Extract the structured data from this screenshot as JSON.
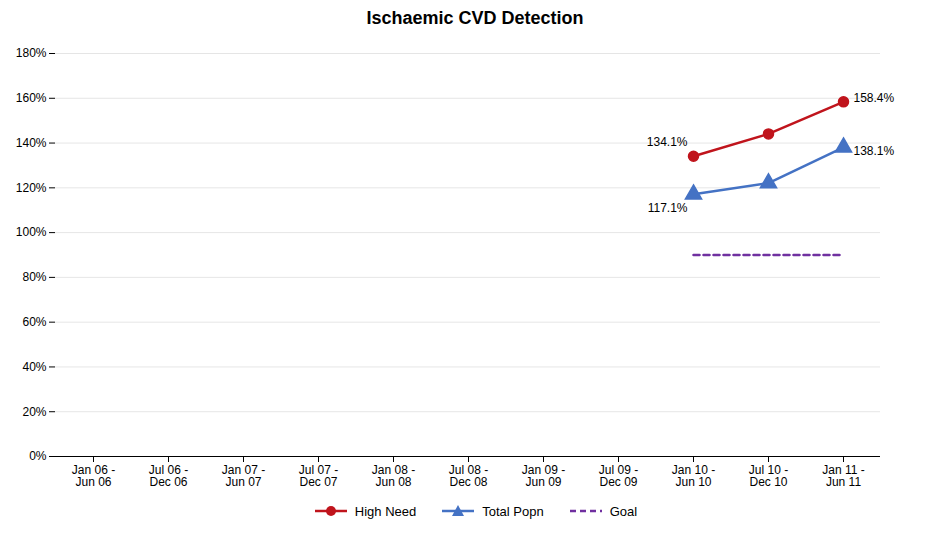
{
  "chart_data": {
    "type": "line",
    "title": "Ischaemic CVD Detection",
    "categories": [
      "Jan 06 -\nJun 06",
      "Jul 06 -\nDec 06",
      "Jan 07 -\nJun 07",
      "Jul 07 -\nDec 07",
      "Jan 08 -\nJun 08",
      "Jul 08 -\nDec 08",
      "Jan 09 -\nJun 09",
      "Jul 09 -\nDec 09",
      "Jan 10 -\nJun 10",
      "Jul 10 -\nDec 10",
      "Jan 11 -\nJun 11"
    ],
    "series": [
      {
        "name": "High Need",
        "color": "#C0141C",
        "marker": "circle",
        "line_style": "solid",
        "values": [
          null,
          null,
          null,
          null,
          null,
          null,
          null,
          null,
          1.341,
          1.441,
          1.584
        ]
      },
      {
        "name": "Total Popn",
        "color": "#4472C4",
        "marker": "triangle",
        "line_style": "solid",
        "values": [
          null,
          null,
          null,
          null,
          null,
          null,
          null,
          null,
          1.171,
          1.221,
          1.381
        ]
      },
      {
        "name": "Goal",
        "color": "#7030A0",
        "marker": "none",
        "line_style": "dashed",
        "values": [
          null,
          null,
          null,
          null,
          null,
          null,
          null,
          null,
          0.9,
          0.9,
          0.9
        ]
      }
    ],
    "annotations": [
      {
        "text": "134.1%",
        "x": "Jan 10 -\nJun 10",
        "y": 1.341
      },
      {
        "text": "158.4%",
        "x": "Jan 11 -\nJun 11",
        "y": 1.584
      },
      {
        "text": "117.1%",
        "x": "Jan 10 -\nJun 10",
        "y": 1.171
      },
      {
        "text": "138.1%",
        "x": "Jan 11 -\nJun 11",
        "y": 1.381
      }
    ],
    "ylim": [
      0,
      1.8
    ],
    "yticks": [
      {
        "value": 0.0,
        "label": "0%"
      },
      {
        "value": 0.2,
        "label": "20%"
      },
      {
        "value": 0.4,
        "label": "40%"
      },
      {
        "value": 0.6,
        "label": "60%"
      },
      {
        "value": 0.8,
        "label": "80%"
      },
      {
        "value": 1.0,
        "label": "100%"
      },
      {
        "value": 1.2,
        "label": "120%"
      },
      {
        "value": 1.4,
        "label": "140%"
      },
      {
        "value": 1.6,
        "label": "160%"
      },
      {
        "value": 1.8,
        "label": "180%"
      }
    ],
    "grid": true,
    "legend": "bottom"
  }
}
